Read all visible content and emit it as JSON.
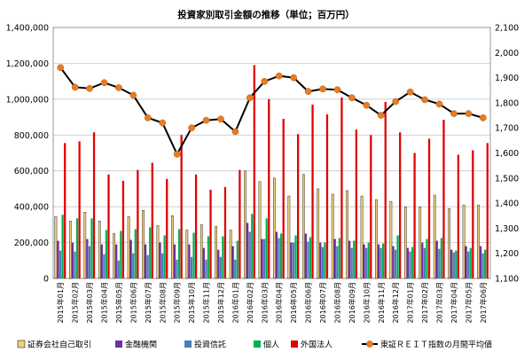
{
  "chart_data": {
    "type": "bar",
    "title": "投資家別取引金額の推移（単位；百万円）",
    "xlabel": "",
    "ylabel": "",
    "ylim": [
      0,
      1400000
    ],
    "y2lim": [
      1100,
      2100
    ],
    "y_ticks": [
      "0",
      "200,000",
      "400,000",
      "600,000",
      "800,000",
      "1,000,000",
      "1,200,000",
      "1,400,000"
    ],
    "y2_ticks": [
      "1,100",
      "1,200",
      "1,300",
      "1,400",
      "1,500",
      "1,600",
      "1,700",
      "1,800",
      "1,900",
      "2,000",
      "2,100"
    ],
    "grid": true,
    "legend_position": "bottom",
    "categories": [
      "2015年01月",
      "2015年02月",
      "2015年03月",
      "2015年04月",
      "2015年05月",
      "2015年06月",
      "2015年07月",
      "2015年08月",
      "2015年09月",
      "2015年10月",
      "2015年11月",
      "2015年12月",
      "2016年01月",
      "2016年02月",
      "2016年03月",
      "2016年04月",
      "2016年05月",
      "2016年06月",
      "2016年07月",
      "2016年08月",
      "2016年09月",
      "2016年10月",
      "2016年11月",
      "2016年12月",
      "2017年01月",
      "2017年02月",
      "2017年03月",
      "2017年04月",
      "2017年05月",
      "2017年06月"
    ],
    "series": [
      {
        "name": "証券会社自己取引",
        "color": "#f2d07a",
        "axis": "left",
        "values": [
          345000,
          320000,
          370000,
          320000,
          250000,
          345000,
          380000,
          295000,
          350000,
          270000,
          300000,
          290000,
          270000,
          600000,
          540000,
          560000,
          460000,
          580000,
          500000,
          470000,
          490000,
          460000,
          440000,
          430000,
          400000,
          400000,
          465000,
          390000,
          410000,
          410000
        ]
      },
      {
        "name": "金融機関",
        "color": "#7030a0",
        "axis": "left",
        "values": [
          210000,
          200000,
          220000,
          190000,
          190000,
          215000,
          190000,
          200000,
          190000,
          190000,
          170000,
          160000,
          180000,
          310000,
          220000,
          260000,
          200000,
          250000,
          200000,
          220000,
          210000,
          190000,
          190000,
          180000,
          170000,
          200000,
          210000,
          160000,
          180000,
          180000
        ]
      },
      {
        "name": "投資信託",
        "color": "#4a7ebb",
        "axis": "left",
        "values": [
          155000,
          150000,
          180000,
          135000,
          100000,
          140000,
          130000,
          140000,
          105000,
          120000,
          105000,
          120000,
          105000,
          260000,
          220000,
          225000,
          200000,
          205000,
          175000,
          180000,
          170000,
          170000,
          170000,
          160000,
          150000,
          170000,
          165000,
          145000,
          150000,
          140000
        ]
      },
      {
        "name": "個人",
        "color": "#00b050",
        "axis": "left",
        "values": [
          355000,
          335000,
          335000,
          270000,
          265000,
          275000,
          285000,
          240000,
          275000,
          255000,
          235000,
          235000,
          210000,
          360000,
          335000,
          250000,
          240000,
          230000,
          200000,
          225000,
          210000,
          200000,
          195000,
          240000,
          175000,
          220000,
          225000,
          155000,
          170000,
          160000
        ]
      },
      {
        "name": "外国法人",
        "color": "#e00000",
        "axis": "left",
        "values": [
          755000,
          765000,
          815000,
          580000,
          545000,
          605000,
          645000,
          555000,
          800000,
          580000,
          495000,
          510000,
          605000,
          1190000,
          1000000,
          890000,
          805000,
          970000,
          915000,
          1010000,
          830000,
          800000,
          985000,
          815000,
          700000,
          780000,
          885000,
          690000,
          715000,
          755000
        ]
      },
      {
        "name": "東証ＲＥＩＴ指数の月間平均値",
        "color": "#000000",
        "marker_color": "#e87c22",
        "axis": "right",
        "type": "line",
        "values": [
          1940,
          1862,
          1857,
          1880,
          1860,
          1830,
          1740,
          1720,
          1595,
          1700,
          1730,
          1735,
          1685,
          1820,
          1885,
          1907,
          1900,
          1845,
          1855,
          1852,
          1820,
          1790,
          1750,
          1805,
          1843,
          1812,
          1795,
          1757,
          1757,
          1740
        ]
      }
    ]
  }
}
